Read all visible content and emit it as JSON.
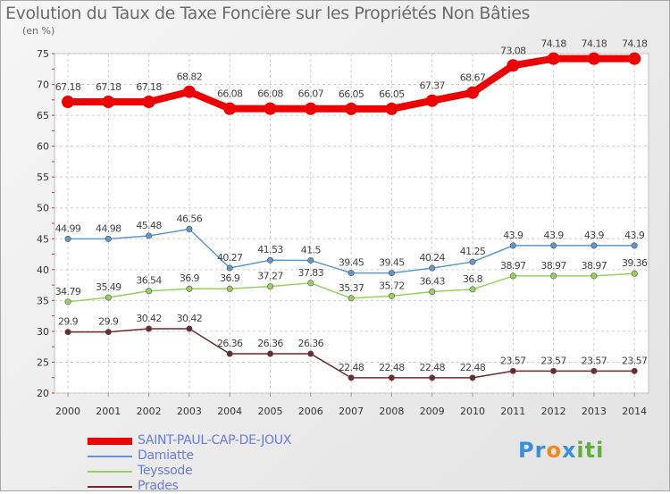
{
  "title": "Evolution du Taux de Taxe Foncière sur les Propriétés Non Bâties",
  "unit_label": "(en %)",
  "logo": {
    "text_parts": [
      "Pr",
      "o",
      "x",
      "iti"
    ],
    "colors": [
      "#3a8fd8",
      "#f08a1c",
      "#3a8fd8",
      "#5bb336"
    ]
  },
  "chart_data": {
    "type": "line",
    "x": [
      "2000",
      "2001",
      "2002",
      "2003",
      "2004",
      "2005",
      "2006",
      "2007",
      "2008",
      "2009",
      "2010",
      "2011",
      "2012",
      "2013",
      "2014"
    ],
    "ylim": [
      20,
      75
    ],
    "yticks": [
      20,
      25,
      30,
      35,
      40,
      45,
      50,
      55,
      60,
      65,
      70,
      75
    ],
    "grid": true,
    "legend_position": "bottom-left",
    "series": [
      {
        "name": "SAINT-PAUL-CAP-DE-JOUX",
        "color": "#ee0000",
        "values": [
          67.18,
          67.18,
          67.18,
          68.82,
          66.08,
          66.08,
          66.07,
          66.05,
          66.05,
          67.37,
          68.67,
          73.08,
          74.18,
          74.18,
          74.18
        ],
        "labels": [
          "67.18",
          "67.18",
          "67.18",
          "68.82",
          "66.08",
          "66.08",
          "66.07",
          "66.05",
          "66.05",
          "67.37",
          "68.67",
          "73.08",
          "74.18",
          "74.18",
          "74.18"
        ]
      },
      {
        "name": "Damiatte",
        "color": "#5f98cc",
        "values": [
          44.99,
          44.98,
          45.48,
          46.56,
          40.27,
          41.53,
          41.5,
          39.45,
          39.45,
          40.24,
          41.25,
          43.9,
          43.9,
          43.9,
          43.9
        ],
        "labels": [
          "44.99",
          "44.98",
          "45.48",
          "46.56",
          "40.27",
          "41.53",
          "41.5",
          "39.45",
          "39.45",
          "40.24",
          "41.25",
          "43.9",
          "43.9",
          "43.9",
          "43.9"
        ]
      },
      {
        "name": "Teyssode",
        "color": "#98d060",
        "values": [
          34.79,
          35.49,
          36.54,
          36.9,
          36.9,
          37.27,
          37.83,
          35.37,
          35.72,
          36.43,
          36.8,
          38.97,
          38.97,
          38.97,
          39.36
        ],
        "labels": [
          "34.79",
          "35.49",
          "36.54",
          "36.9",
          "36.9",
          "37.27",
          "37.83",
          "35.37",
          "35.72",
          "36.43",
          "36.8",
          "38.97",
          "38.97",
          "38.97",
          "39.36"
        ]
      },
      {
        "name": "Prades",
        "color": "#6e2a30",
        "values": [
          29.9,
          29.9,
          30.42,
          30.42,
          26.36,
          26.36,
          26.36,
          22.48,
          22.48,
          22.48,
          22.48,
          23.57,
          23.57,
          23.57,
          23.57
        ],
        "labels": [
          "29.9",
          "29.9",
          "30.42",
          "30.42",
          "26.36",
          "26.36",
          "26.36",
          "22.48",
          "22.48",
          "22.48",
          "22.48",
          "23.57",
          "23.57",
          "23.57",
          "23.57"
        ]
      }
    ]
  }
}
